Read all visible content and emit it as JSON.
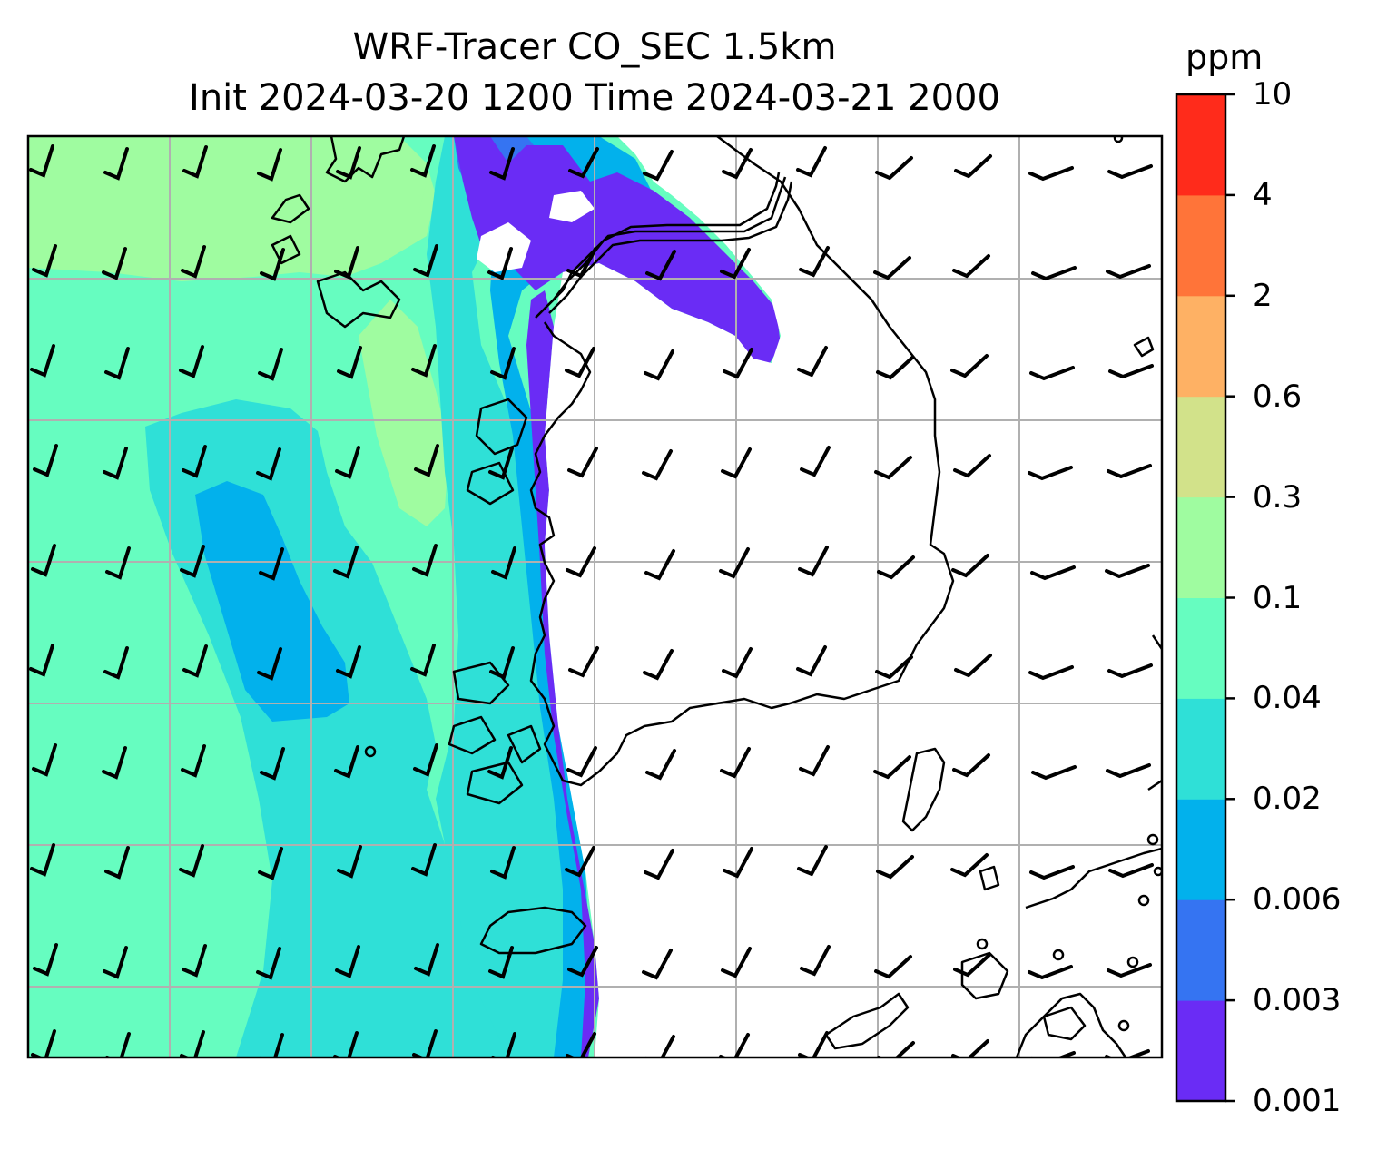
{
  "title": {
    "line1": "WRF-Tracer CO_SEC 1.5km",
    "line2": "Init 2024-03-20 1200 Time 2024-03-21 2000"
  },
  "colorbar": {
    "unit": "ppm",
    "levels": [
      "0.001",
      "0.003",
      "0.006",
      "0.02",
      "0.04",
      "0.1",
      "0.3",
      "0.6",
      "2",
      "4",
      "10"
    ],
    "colors": [
      "#6a2cf5",
      "#3574f2",
      "#02b1ec",
      "#2fe0d7",
      "#66fdc0",
      "#9ffca0",
      "#d2e28a",
      "#feb164",
      "#ff7439",
      "#ff2b1b"
    ]
  },
  "map": {
    "field": "CO_SEC tracer concentration with wind barbs",
    "coastline_color": "#000000",
    "gridline_color": "#b0b0b0",
    "background_color": "#ffffff"
  }
}
